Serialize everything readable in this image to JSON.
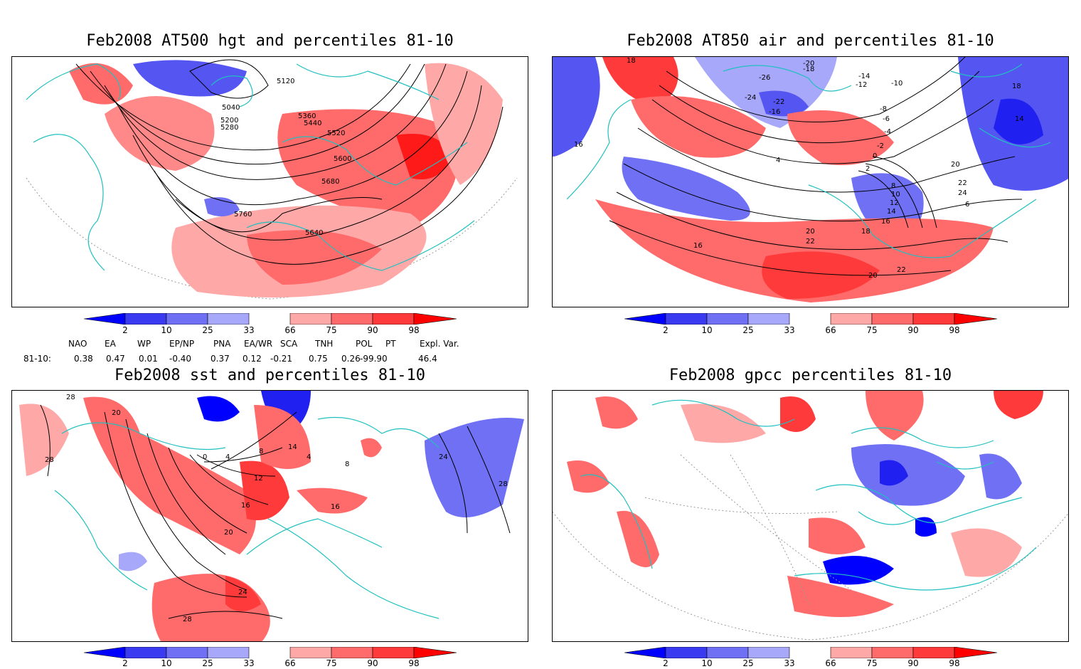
{
  "panels": [
    {
      "title": "Feb2008 AT500 hgt and percentiles 81-10",
      "contour_labels": [
        "5120",
        "5040",
        "5200",
        "5280",
        "5360",
        "5440",
        "5520",
        "5600",
        "5680",
        "5760",
        "5640"
      ]
    },
    {
      "title": "Feb2008 AT850 air and percentiles 81-10",
      "contour_labels": [
        "18",
        "-20",
        "-18",
        "-26",
        "-24",
        "-22",
        "-16",
        "-14",
        "-12",
        "-10",
        "-8",
        "-6",
        "-4",
        "-2",
        "0",
        "2",
        "4",
        "16",
        "14",
        "18",
        "20",
        "22",
        "24",
        "6",
        "8",
        "10",
        "12",
        "14",
        "16",
        "18",
        "20",
        "22",
        "16",
        "22",
        "20"
      ]
    },
    {
      "title": "Feb2008 sst and percentiles 81-10",
      "contour_labels": [
        "28",
        "20",
        "28",
        "0",
        "4",
        "8",
        "12",
        "16",
        "20",
        "24",
        "28",
        "14",
        "4",
        "8",
        "16",
        "24",
        "28"
      ]
    },
    {
      "title": "Feb2008 gpcc percentiles 81-10",
      "contour_labels": []
    }
  ],
  "colorbar": {
    "labels": [
      "2",
      "10",
      "25",
      "33",
      "66",
      "75",
      "90",
      "98"
    ],
    "colors": [
      "#0000ff",
      "#3a3af0",
      "#7070f5",
      "#a8a8fa",
      "#ffffff",
      "#ffa8a8",
      "#ff6a6a",
      "#ff3a3a",
      "#ff0000"
    ]
  },
  "indices": {
    "headers": [
      "NAO",
      "EA",
      "WP",
      "EP/NP",
      "PNA",
      "EA/WR",
      "SCA",
      "TNH",
      "POL",
      "PT",
      "Expl. Var."
    ],
    "row_label": "81-10:",
    "values": [
      "0.38",
      "0.47",
      "0.01",
      "-0.40",
      "0.37",
      "0.12",
      "-0.21",
      "0.75",
      "0.26",
      "-99.90",
      "46.4"
    ]
  },
  "colors": {
    "coast": "#20c0c0",
    "warm": "#ff3a3a",
    "cold": "#3a3af0",
    "contour": "#000000"
  }
}
